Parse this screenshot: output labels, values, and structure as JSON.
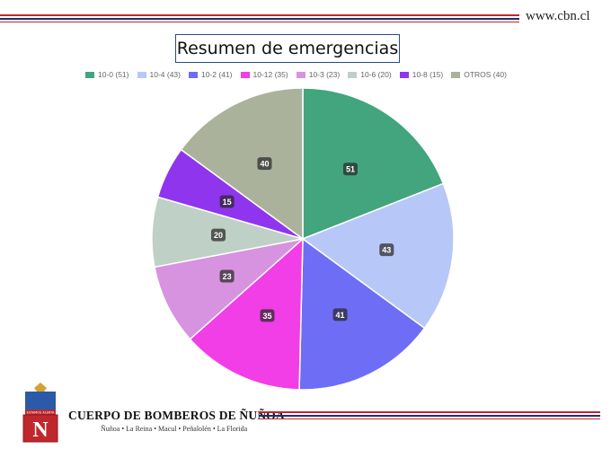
{
  "header": {
    "url": "www.cbn.cl"
  },
  "chart_data": {
    "type": "pie",
    "title": "Resumen de emergencias",
    "legend_position": "top",
    "slices": [
      {
        "label": "10-0 (51)",
        "value": 51,
        "data_label": "51",
        "color": "#43a57d"
      },
      {
        "label": "10-4 (43)",
        "value": 43,
        "data_label": "43",
        "color": "#b7c7f7"
      },
      {
        "label": "10-2 (41)",
        "value": 41,
        "data_label": "41",
        "color": "#6e6df5"
      },
      {
        "label": "10-12 (35)",
        "value": 35,
        "data_label": "35",
        "color": "#f23ee6"
      },
      {
        "label": "10-3 (23)",
        "value": 23,
        "data_label": "23",
        "color": "#d793df"
      },
      {
        "label": "10-6 (20)",
        "value": 20,
        "data_label": "20",
        "color": "#bfd0c6"
      },
      {
        "label": "10-8 (15)",
        "value": 15,
        "data_label": "15",
        "color": "#9035ee"
      },
      {
        "label": "OTROS (40)",
        "value": 40,
        "data_label": "40",
        "color": "#aab29c"
      }
    ]
  },
  "footer": {
    "logo_text": "ESTAMOS ALERTA",
    "logo_letter": "N",
    "org_name": "CUERPO DE BOMBEROS DE ÑUÑOA",
    "org_sub": "Ñuñoa • La Reina • Macul • Peñalolén • La Florida"
  },
  "colors": {
    "red_line": "#c0272d",
    "navy_line": "#1f2f6b"
  }
}
